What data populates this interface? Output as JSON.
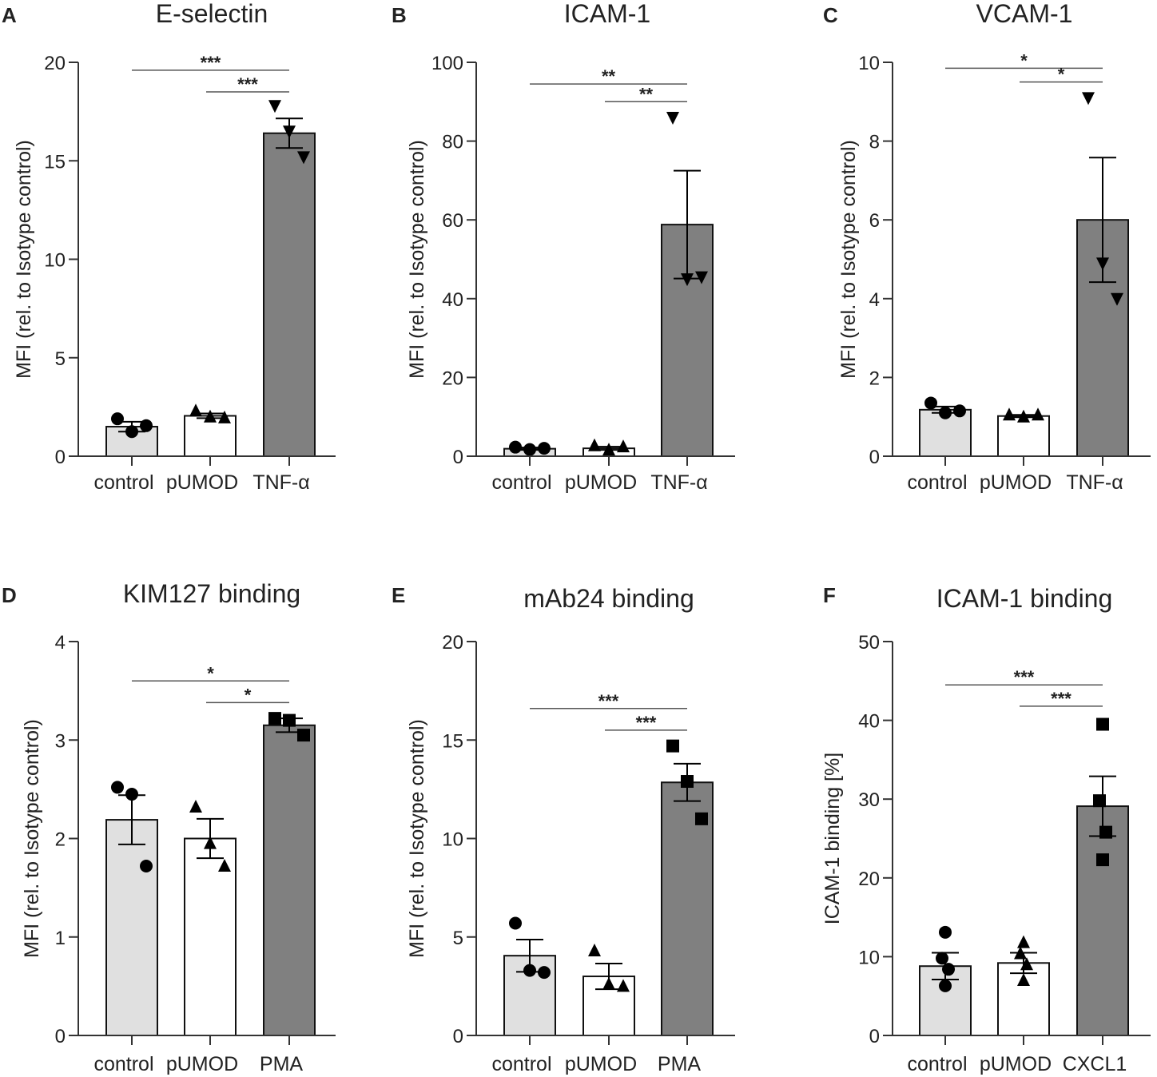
{
  "colors": {
    "control": "#e0e0e0",
    "treat": "#ffffff",
    "stim": "#808080",
    "stroke": "#111111",
    "sigline": "#555555"
  },
  "chart_data": [
    {
      "type": "bar",
      "panel": "A",
      "title": "E-selectin",
      "ylabel": "MFI (rel. to Isotype control)",
      "categories": [
        "control",
        "pUMOD",
        "TNF-α"
      ],
      "values": [
        1.5,
        2.05,
        16.4
      ],
      "sem": [
        0.25,
        0.12,
        0.75
      ],
      "points": [
        [
          1.9,
          1.25,
          1.55
        ],
        [
          2.3,
          2.0,
          1.95
        ],
        [
          17.8,
          16.5,
          15.2
        ]
      ],
      "markers": [
        "circle",
        "triangle",
        "triangle-down"
      ],
      "yticks": [
        0,
        5,
        10,
        15,
        20
      ],
      "ylim": [
        0,
        20
      ],
      "significance": [
        {
          "from": 0,
          "to": 2,
          "label": "***",
          "y": 19.6
        },
        {
          "from": 1,
          "to": 2,
          "label": "***",
          "y": 18.5
        }
      ]
    },
    {
      "type": "bar",
      "panel": "B",
      "title": "ICAM-1",
      "ylabel": "MFI (rel. to Isotype control)",
      "categories": [
        "control",
        "pUMOD",
        "TNF-α"
      ],
      "values": [
        1.9,
        2.0,
        58.8
      ],
      "sem": [
        0.3,
        0.4,
        13.7
      ],
      "points": [
        [
          2.3,
          1.7,
          2.0
        ],
        [
          2.7,
          1.6,
          2.4
        ],
        [
          86.0,
          45.0,
          45.5
        ]
      ],
      "markers": [
        "circle",
        "triangle",
        "triangle-down"
      ],
      "yticks": [
        0,
        20,
        40,
        60,
        80,
        100
      ],
      "ylim": [
        0,
        100
      ],
      "significance": [
        {
          "from": 0,
          "to": 2,
          "label": "**",
          "y": 94.5
        },
        {
          "from": 1,
          "to": 2,
          "label": "**",
          "y": 90
        }
      ]
    },
    {
      "type": "bar",
      "panel": "C",
      "title": "VCAM-1",
      "ylabel": "MFI (rel. to Isotype control)",
      "categories": [
        "control",
        "pUMOD",
        "TNF-α"
      ],
      "values": [
        1.18,
        1.02,
        6.0
      ],
      "sem": [
        0.08,
        0.03,
        1.58
      ],
      "points": [
        [
          1.35,
          1.1,
          1.15
        ],
        [
          1.05,
          1.0,
          1.05
        ],
        [
          9.1,
          4.9,
          4.0
        ]
      ],
      "markers": [
        "circle",
        "triangle",
        "triangle-down"
      ],
      "yticks": [
        0,
        2,
        4,
        6,
        8,
        10
      ],
      "ylim": [
        0,
        10
      ],
      "significance": [
        {
          "from": 0,
          "to": 2,
          "label": "*",
          "y": 9.85
        },
        {
          "from": 1,
          "to": 2,
          "label": "*",
          "y": 9.5
        }
      ]
    },
    {
      "type": "bar",
      "panel": "D",
      "title": "KIM127 binding",
      "ylabel": "MFI (rel. to Isotype control)",
      "categories": [
        "control",
        "pUMOD",
        "PMA"
      ],
      "values": [
        2.19,
        2.0,
        3.15
      ],
      "sem": [
        0.25,
        0.2,
        0.07
      ],
      "points": [
        [
          2.52,
          2.45,
          1.72
        ],
        [
          2.32,
          1.95,
          1.72
        ],
        [
          3.22,
          3.2,
          3.05
        ]
      ],
      "markers": [
        "circle",
        "triangle",
        "square"
      ],
      "yticks": [
        0,
        1,
        2,
        3,
        4
      ],
      "ylim": [
        0,
        4
      ],
      "significance": [
        {
          "from": 0,
          "to": 2,
          "label": "*",
          "y": 3.6
        },
        {
          "from": 1,
          "to": 2,
          "label": "*",
          "y": 3.38
        }
      ]
    },
    {
      "type": "bar",
      "panel": "E",
      "title": "mAb24 binding",
      "ylabel": "MFI (rel. to Isotype control)",
      "categories": [
        "control",
        "pUMOD",
        "PMA"
      ],
      "values": [
        4.05,
        3.0,
        12.85
      ],
      "sem": [
        0.82,
        0.65,
        0.95
      ],
      "points": [
        [
          5.7,
          3.3,
          3.2
        ],
        [
          4.3,
          2.6,
          2.5
        ],
        [
          14.7,
          12.9,
          11.0
        ]
      ],
      "markers": [
        "circle",
        "triangle",
        "square"
      ],
      "yticks": [
        0,
        5,
        10,
        15,
        20
      ],
      "ylim": [
        0,
        20
      ],
      "significance": [
        {
          "from": 0,
          "to": 2,
          "label": "***",
          "y": 16.6
        },
        {
          "from": 1,
          "to": 2,
          "label": "***",
          "y": 15.5
        }
      ]
    },
    {
      "type": "bar",
      "panel": "F",
      "title": "ICAM-1 binding",
      "ylabel": "ICAM-1 binding [%]",
      "categories": [
        "control",
        "pUMOD",
        "CXCL1"
      ],
      "values": [
        8.8,
        9.2,
        29.1
      ],
      "sem": [
        1.7,
        1.3,
        3.8
      ],
      "points": [
        [
          13.1,
          9.8,
          8.4,
          6.3
        ],
        [
          11.8,
          10.4,
          9.0,
          7.0
        ],
        [
          39.5,
          29.8,
          25.8,
          22.3
        ]
      ],
      "markers": [
        "circle",
        "triangle",
        "square"
      ],
      "yticks": [
        0,
        10,
        20,
        30,
        40,
        50
      ],
      "ylim": [
        0,
        50
      ],
      "significance": [
        {
          "from": 0,
          "to": 2,
          "label": "***",
          "y": 44.5
        },
        {
          "from": 1,
          "to": 2,
          "label": "***",
          "y": 41.8
        }
      ]
    }
  ]
}
